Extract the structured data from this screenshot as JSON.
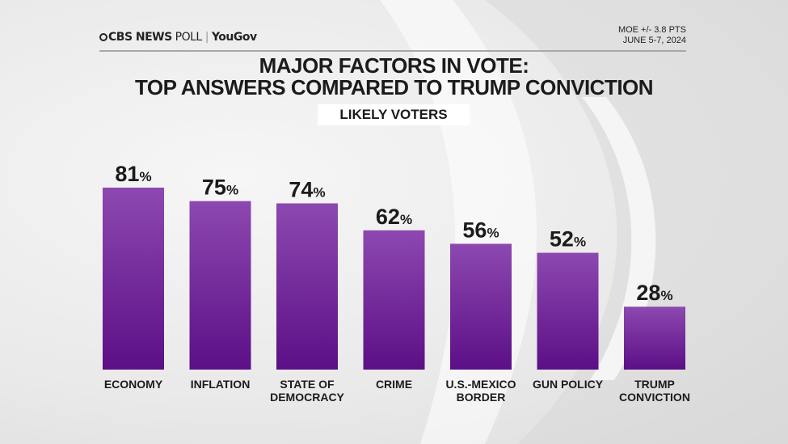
{
  "header": {
    "brand_primary": "CBS NEWS",
    "brand_secondary": "POLL",
    "brand_partner": "YouGov",
    "moe": "MOE +/- 3.8 PTS",
    "dates": "JUNE 5-7, 2024"
  },
  "chart_data": {
    "type": "bar",
    "title": "MAJOR FACTORS IN VOTE:",
    "subtitle": "TOP ANSWERS COMPARED TO TRUMP CONVICTION",
    "population": "LIKELY VOTERS",
    "categories": [
      [
        "ECONOMY"
      ],
      [
        "INFLATION"
      ],
      [
        "STATE OF",
        "DEMOCRACY"
      ],
      [
        "CRIME"
      ],
      [
        "U.S.-MEXICO",
        "BORDER"
      ],
      [
        "GUN POLICY"
      ],
      [
        "TRUMP",
        "CONVICTION"
      ]
    ],
    "values": [
      81,
      75,
      74,
      62,
      56,
      52,
      28
    ],
    "unit": "%",
    "ylim": [
      0,
      100
    ],
    "grid": false,
    "bar_color_top": "#8d48b0",
    "bar_color_bottom": "#5c0f86"
  }
}
